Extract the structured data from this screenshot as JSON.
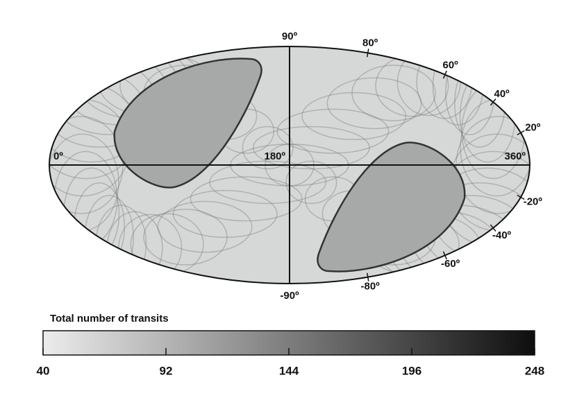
{
  "chart_data": {
    "type": "mollweide",
    "lon_ticks": [
      {
        "value": 0,
        "label": "0º"
      },
      {
        "value": 180,
        "label": "180º"
      },
      {
        "value": 360,
        "label": "360º"
      }
    ],
    "lat_ticks": [
      {
        "value": 90,
        "label": "90º"
      },
      {
        "value": 80,
        "label": "80º"
      },
      {
        "value": 60,
        "label": "60º"
      },
      {
        "value": 40,
        "label": "40º"
      },
      {
        "value": 20,
        "label": "20º"
      },
      {
        "value": -20,
        "label": "-20º"
      },
      {
        "value": -40,
        "label": "-40º"
      },
      {
        "value": -60,
        "label": "-60º"
      },
      {
        "value": -80,
        "label": "-80º"
      },
      {
        "value": -90,
        "label": "-90º"
      }
    ],
    "colorbar": {
      "title": "Total number of transits",
      "lim": [
        40,
        248
      ],
      "ticks": [
        40,
        92,
        144,
        196,
        248
      ],
      "colors": [
        "#ececec",
        "#0e0e0e"
      ]
    }
  }
}
